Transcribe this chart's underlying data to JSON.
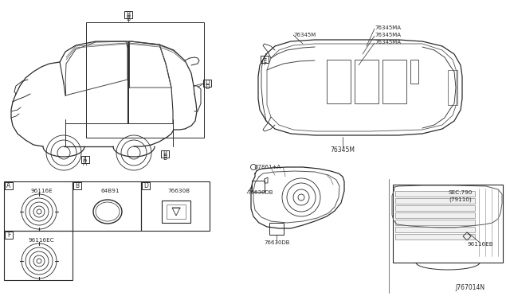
{
  "background_color": "#ffffff",
  "line_color": "#2a2a2a",
  "diagram_id": "J767014N",
  "labels": {
    "A": "96116E",
    "B": "64B91",
    "D": "76630B",
    "F": "96116EC",
    "top_76345M": "76345M",
    "top_76345MA_1": "76345MA",
    "top_76345MA_2": "76345MA",
    "top_76345MA_3": "76345MA",
    "bot_76345M": "76345M",
    "detail_label": "67861+A",
    "detail_p1": "76630DB",
    "detail_p2": "76630DB",
    "sec_label": "SEC.790",
    "sec_sub": "(79110)",
    "sec_part": "96116EB"
  }
}
